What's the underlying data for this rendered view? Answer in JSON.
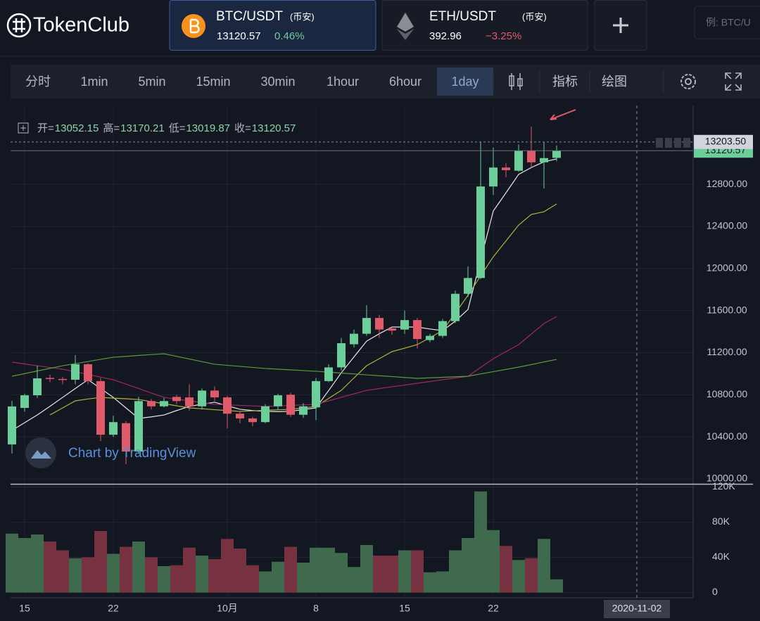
{
  "header": {
    "logo": "TokenClub",
    "tabs": [
      {
        "pair": "BTC/USDT",
        "exchange": "(币安)",
        "price": 13120.57,
        "change": "0.46%"
      },
      {
        "pair": "ETH/USDT",
        "exchange": "(币安)",
        "price": 392.96,
        "change": "−3.25%"
      }
    ],
    "search_placeholder": "例: BTC/U"
  },
  "toolbar": {
    "intervals": [
      "分时",
      "1min",
      "5min",
      "15min",
      "30min",
      "1hour",
      "6hour",
      "1day"
    ],
    "active": "1day",
    "buttons": [
      "指标",
      "绘图"
    ]
  },
  "ohlc_legend": {
    "open_label": "开=",
    "open": 13052.15,
    "high_label": "高=",
    "high": 13170.21,
    "low_label": "低=",
    "low": 13019.87,
    "close_label": "收=",
    "close": 13120.57
  },
  "watermark": "Chart by TradingView",
  "chart": {
    "dates": [
      null,
      "15",
      null,
      null,
      null,
      null,
      null,
      null,
      "22",
      null,
      null,
      null,
      null,
      null,
      null,
      null,
      null,
      "10月",
      null,
      null,
      null,
      null,
      null,
      null,
      "8",
      null,
      null,
      null,
      null,
      null,
      null,
      "15",
      null,
      null,
      null,
      null,
      null,
      null,
      "22",
      null,
      null,
      null,
      null,
      null
    ],
    "open": [
      10328,
      10675,
      10795,
      10960,
      10950,
      10943,
      11090,
      10930,
      10420,
      10530,
      10260,
      10740,
      10690,
      10780,
      10775,
      10690,
      10840,
      10775,
      10620,
      10575,
      10540,
      10690,
      10800,
      10610,
      10680,
      10930,
      11060,
      11280,
      11380,
      11530,
      11430,
      11420,
      11510,
      11320,
      11360,
      11500,
      11760,
      11910,
      12780,
      12960,
      12930,
      13120,
      13010,
      13052.15
    ],
    "high": [
      10742,
      10810,
      11076,
      10990,
      10970,
      11177,
      11100,
      10960,
      10600,
      10550,
      10780,
      10760,
      10770,
      10800,
      10900,
      10860,
      10880,
      10790,
      10640,
      10590,
      10710,
      10810,
      10820,
      10720,
      10960,
      11090,
      11340,
      11420,
      11650,
      11560,
      11450,
      11600,
      11530,
      11380,
      11520,
      11790,
      12020,
      13200,
      13150,
      13000,
      13180,
      13349,
      13200,
      13170.21
    ],
    "low": [
      10241,
      10640,
      10770,
      10920,
      10900,
      10900,
      10900,
      10360,
      10400,
      10140,
      10240,
      10660,
      10680,
      10710,
      10650,
      10660,
      10740,
      10480,
      10530,
      10500,
      10530,
      10660,
      10590,
      10580,
      10560,
      10920,
      11030,
      11250,
      11360,
      11340,
      11370,
      11380,
      11240,
      11300,
      11340,
      11480,
      11730,
      11900,
      12700,
      12870,
      12920,
      12960,
      12760,
      13019.87
    ],
    "close": [
      10689,
      10795,
      10956,
      10950,
      10940,
      11090,
      10930,
      10420,
      10540,
      10260,
      10740,
      10690,
      10740,
      10740,
      10690,
      10840,
      10775,
      10620,
      10575,
      10540,
      10690,
      10795,
      10610,
      10690,
      10930,
      11060,
      11290,
      11380,
      11530,
      11420,
      11410,
      11510,
      11330,
      11360,
      11500,
      11760,
      11910,
      12780,
      12960,
      12935,
      13120,
      13010,
      13050,
      13120.57
    ],
    "volume": [
      67,
      62,
      66,
      58,
      48,
      39,
      40,
      70,
      44,
      52,
      58,
      40,
      30,
      31,
      51,
      42,
      38,
      61,
      50,
      31,
      24,
      35,
      52,
      34,
      51,
      51,
      45,
      29,
      54,
      42,
      42,
      48,
      48,
      23,
      24,
      48,
      62,
      115,
      71,
      53,
      37,
      39,
      61,
      15
    ],
    "ma": [
      {
        "color": "#e8e8ec",
        "values": [
          10461,
          10535,
          10608,
          10690,
          10775,
          10860,
          10943,
          10860,
          10775,
          10675,
          10575,
          10590,
          10608,
          10650,
          10689,
          10710,
          10729,
          10695,
          10662,
          10650,
          10642,
          10640,
          10642,
          10660,
          10675,
          10840,
          11009,
          11160,
          11310,
          11380,
          11444,
          11444,
          11444,
          11425,
          11410,
          11500,
          11611,
          12080,
          12547,
          12720,
          12895,
          12960,
          13015,
          13042
        ]
      },
      {
        "color": "#b5b23a",
        "values": [
          null,
          null,
          null,
          10608,
          10675,
          10742,
          10760,
          10775,
          10768,
          10762,
          10755,
          10735,
          10715,
          10695,
          10675,
          10667,
          10658,
          10650,
          10642,
          10647,
          10652,
          10657,
          10662,
          10675,
          10689,
          10765,
          10842,
          10960,
          11076,
          11143,
          11210,
          11243,
          11277,
          11343,
          11410,
          11577,
          11745,
          11930,
          12112,
          12262,
          12413,
          12514,
          12540,
          12614
        ]
      },
      {
        "color": "#a3285f",
        "values": [
          11110,
          11093,
          11076,
          11060,
          11043,
          11018,
          10993,
          10968,
          10943,
          10901,
          10859,
          10817,
          10775,
          10759,
          10742,
          10726,
          10709,
          10704,
          10699,
          10694,
          10689,
          10694,
          10699,
          10704,
          10709,
          10742,
          10776,
          10809,
          10842,
          10859,
          10876,
          10892,
          10909,
          10926,
          10943,
          10959,
          10976,
          11060,
          11143,
          11210,
          11277,
          11377,
          11477,
          11544
        ]
      },
      {
        "color": "#5d9a3c",
        "values": [
          10976,
          11001,
          11026,
          11051,
          11076,
          11096,
          11116,
          11137,
          11157,
          11165,
          11174,
          11182,
          11190,
          11165,
          11140,
          11115,
          11090,
          11080,
          11070,
          11060,
          11050,
          11043,
          11037,
          11030,
          11023,
          11015,
          11006,
          10998,
          10989,
          10981,
          10973,
          10964,
          10956,
          10961,
          10966,
          10971,
          10976,
          10998,
          11020,
          11041,
          11063,
          11087,
          11112,
          11136
        ]
      }
    ],
    "ylim": [
      9953,
      13550
    ],
    "yticks": [
      {
        "value": 10000,
        "label": "10000.00"
      },
      {
        "value": 10400,
        "label": "10400.00"
      },
      {
        "value": 10800,
        "label": "10800.00"
      },
      {
        "value": 11200,
        "label": "11200.00"
      },
      {
        "value": 11600,
        "label": "11600.00"
      },
      {
        "value": 12000,
        "label": "12000.00"
      },
      {
        "value": 12400,
        "label": "12400.00"
      },
      {
        "value": 12800,
        "label": "12800.00"
      }
    ],
    "volume_ylim": [
      -6,
      122
    ],
    "volume_yticks": [
      0,
      {
        "value": 40,
        "label": "40K"
      },
      {
        "value": 80,
        "label": "80K"
      },
      {
        "value": 120,
        "label": "120K"
      }
    ],
    "price_labels": [
      {
        "value": 13120.57,
        "label": "13120.57",
        "color": "#6ccf9a"
      },
      {
        "value": 13203.5,
        "label": "13203.50",
        "color": "#d1d4dc"
      }
    ],
    "crosshair_date": "2020-11-02",
    "up_color": "#6ccf9a",
    "down_color": "#e05a6a",
    "up_volume_color": "#3f6a4e",
    "down_volume_color": "#763240"
  }
}
